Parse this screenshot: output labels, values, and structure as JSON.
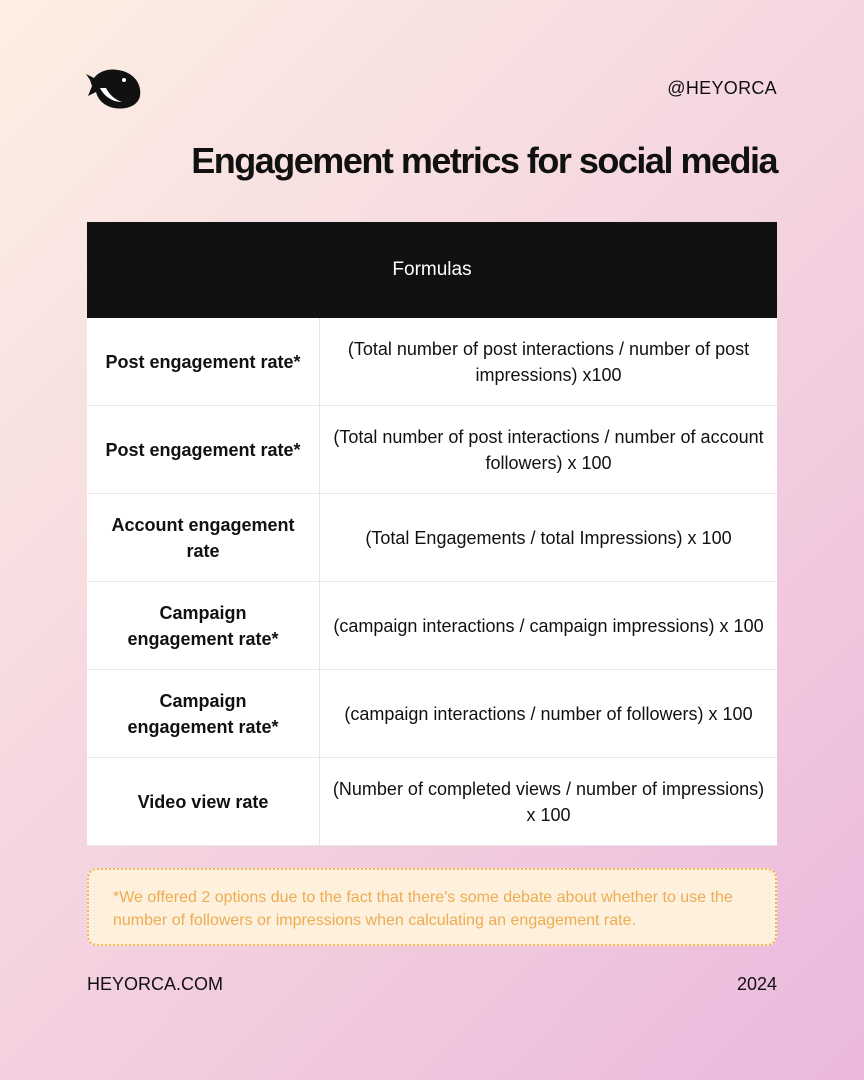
{
  "header": {
    "handle": "@HEYORCA",
    "title": "Engagement metrics for social media"
  },
  "table": {
    "header": "Formulas",
    "rows": [
      [
        "Post engagement rate*",
        "(Total number of post interactions / number of post impressions) x100"
      ],
      [
        "Post engagement rate*",
        "(Total number of post interactions / number of account followers) x 100"
      ],
      [
        "Account engagement rate",
        "(Total Engagements / total Impressions) x 100"
      ],
      [
        "Campaign engagement rate*",
        "(campaign interactions / campaign impressions) x 100"
      ],
      [
        "Campaign engagement rate*",
        "(campaign interactions / number of followers) x 100"
      ],
      [
        "Video view rate",
        "(Number of completed views / number of impressions) x 100"
      ]
    ]
  },
  "note": "*We offered 2 options due to the fact that there's some debate about whether to use the number of followers or impressions when calculating an engagement rate.",
  "footer": {
    "website": "HEYORCA.COM",
    "year": "2024"
  }
}
